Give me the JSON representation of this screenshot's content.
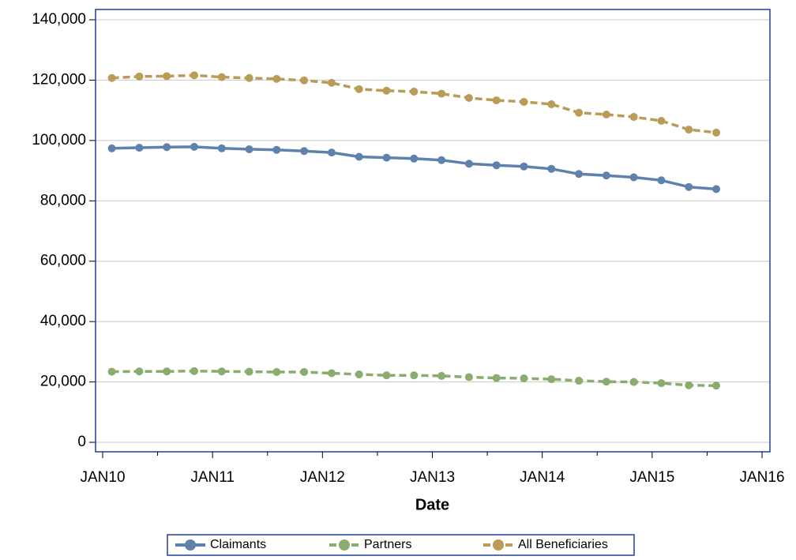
{
  "chart_data": {
    "type": "line",
    "x_label": "Date",
    "x": [
      "2010-02",
      "2010-05",
      "2010-08",
      "2010-11",
      "2011-02",
      "2011-05",
      "2011-08",
      "2011-11",
      "2012-02",
      "2012-05",
      "2012-08",
      "2012-11",
      "2013-02",
      "2013-05",
      "2013-08",
      "2013-11",
      "2014-02",
      "2014-05",
      "2014-08",
      "2014-11",
      "2015-02",
      "2015-05",
      "2015-08"
    ],
    "series": [
      {
        "name": "Claimants",
        "color": "#5f82ad",
        "dashed": false,
        "values": [
          97400,
          97600,
          97800,
          97900,
          97400,
          97100,
          96900,
          96500,
          96000,
          94600,
          94300,
          94000,
          93500,
          92300,
          91800,
          91400,
          90600,
          88900,
          88400,
          87800,
          86800,
          84600,
          83900
        ]
      },
      {
        "name": "Partners",
        "color": "#8aac6e",
        "dashed": true,
        "values": [
          23400,
          23500,
          23500,
          23600,
          23500,
          23400,
          23300,
          23300,
          22900,
          22500,
          22200,
          22200,
          22000,
          21600,
          21300,
          21200,
          20900,
          20400,
          20100,
          20000,
          19600,
          18900,
          18800
        ]
      },
      {
        "name": "All Beneficiaries",
        "color": "#b89c57",
        "dashed": true,
        "values": [
          120700,
          121200,
          121300,
          121600,
          121000,
          120700,
          120400,
          119900,
          119100,
          117000,
          116500,
          116200,
          115500,
          114100,
          113300,
          112800,
          112000,
          109200,
          108600,
          107800,
          106500,
          103600,
          102600
        ]
      }
    ],
    "xlim": [
      "2010-01",
      "2016-01"
    ],
    "xticks": [
      {
        "value": "2010-01",
        "label": "JAN10"
      },
      {
        "value": "2011-01",
        "label": "JAN11"
      },
      {
        "value": "2012-01",
        "label": "JAN12"
      },
      {
        "value": "2013-01",
        "label": "JAN13"
      },
      {
        "value": "2014-01",
        "label": "JAN14"
      },
      {
        "value": "2015-01",
        "label": "JAN15"
      },
      {
        "value": "2016-01",
        "label": "JAN16"
      }
    ],
    "xminorticks": [
      "2010-07",
      "2011-07",
      "2012-07",
      "2013-07",
      "2014-07",
      "2015-07"
    ],
    "ylim": [
      0,
      140000
    ],
    "yticks": [
      0,
      {
        "value": 20000,
        "label": "20,000"
      },
      {
        "value": 40000,
        "label": "40,000"
      },
      {
        "value": 60000,
        "label": "60,000"
      },
      {
        "value": 80000,
        "label": "80,000"
      },
      {
        "value": 100000,
        "label": "100,000"
      },
      {
        "value": 120000,
        "label": "120,000"
      },
      {
        "value": 140000,
        "label": "140,000"
      }
    ],
    "grid": true,
    "legend": "bottom"
  }
}
